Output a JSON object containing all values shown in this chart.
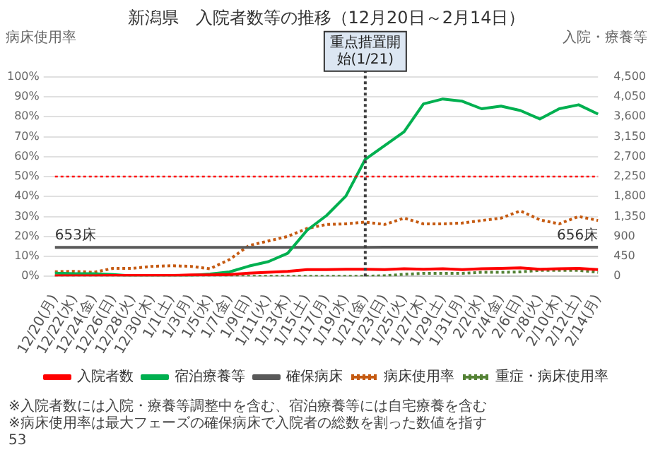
{
  "chart_data": {
    "type": "line",
    "title": "新潟県　入院者数等の推移（12月20日～2月14日）",
    "ylabel": "病床使用率",
    "y2label": "入院・療養等",
    "categories": [
      "12/20(月)",
      "12/22(水)",
      "12/24(金)",
      "12/26(日)",
      "12/28(火)",
      "12/30(木)",
      "1/1(土)",
      "1/3(月)",
      "1/5(水)",
      "1/7(金)",
      "1/9(日)",
      "1/11(火)",
      "1/13(木)",
      "1/15(土)",
      "1/17(月)",
      "1/19(水)",
      "1/21(金)",
      "1/23(日)",
      "1/25(火)",
      "1/27(木)",
      "1/29(土)",
      "1/31(月)",
      "2/2(水)",
      "2/4(金)",
      "2/6(日)",
      "2/8(火)",
      "2/10(木)",
      "2/12(土)",
      "2/14(月)"
    ],
    "series": [
      {
        "name": "入院者数",
        "color": "#ff0000",
        "axis": "y2",
        "line_style": "solid",
        "values": [
          10,
          10,
          10,
          20,
          20,
          20,
          20,
          30,
          30,
          40,
          70,
          90,
          110,
          150,
          150,
          160,
          160,
          150,
          170,
          160,
          170,
          150,
          170,
          180,
          190,
          160,
          170,
          180,
          150
        ]
      },
      {
        "name": "宿泊療養等",
        "color": "#00b050",
        "axis": "y2",
        "line_style": "solid",
        "values": [
          70,
          60,
          60,
          40,
          10,
          10,
          20,
          20,
          50,
          100,
          230,
          330,
          520,
          1040,
          1370,
          1810,
          2640,
          2950,
          3260,
          3890,
          4000,
          3950,
          3780,
          3840,
          3740,
          3550,
          3780,
          3870,
          3660
        ]
      },
      {
        "name": "確保病床",
        "color": "#595959",
        "axis": "y2",
        "line_style": "solid",
        "values": [
          653,
          653,
          653,
          653,
          653,
          653,
          653,
          653,
          653,
          653,
          653,
          653,
          653,
          653,
          653,
          653,
          653,
          656,
          656,
          656,
          656,
          656,
          656,
          656,
          656,
          656,
          656,
          656,
          656
        ],
        "value_labels": [
          "653床",
          null,
          null,
          null,
          null,
          null,
          null,
          null,
          null,
          null,
          null,
          null,
          null,
          null,
          null,
          null,
          null,
          null,
          null,
          null,
          null,
          null,
          null,
          null,
          null,
          null,
          null,
          null,
          "656床"
        ]
      },
      {
        "name": "病床使用率",
        "color": "#c55a11",
        "axis": "y",
        "line_style": "dotted",
        "values": [
          2.3,
          2.5,
          2,
          4,
          4,
          5,
          5.3,
          5,
          3.8,
          8.4,
          15.4,
          17.7,
          20,
          24,
          26,
          26.3,
          27.2,
          26,
          29.2,
          26.3,
          26.3,
          26.7,
          28,
          29.2,
          32.8,
          28.3,
          26.3,
          30,
          28
        ]
      },
      {
        "name": "重症・病床使用率",
        "color": "#548235",
        "axis": "y",
        "line_style": "dotted",
        "values": [
          0,
          0,
          0,
          0,
          0,
          0,
          0,
          0,
          0,
          0,
          0,
          0,
          0,
          0,
          0,
          0,
          0,
          0.3,
          1,
          1.5,
          1.5,
          1.5,
          2,
          2,
          2.2,
          3,
          3,
          3,
          2
        ]
      }
    ],
    "ylim": [
      0,
      100
    ],
    "yticks": [
      {
        "value": 0,
        "label": "0%"
      },
      {
        "value": 10,
        "label": "10%"
      },
      {
        "value": 20,
        "label": "20%"
      },
      {
        "value": 30,
        "label": "30%"
      },
      {
        "value": 40,
        "label": "40%"
      },
      {
        "value": 50,
        "label": "50%"
      },
      {
        "value": 60,
        "label": "60%"
      },
      {
        "value": 70,
        "label": "70%"
      },
      {
        "value": 80,
        "label": "80%"
      },
      {
        "value": 90,
        "label": "90%"
      },
      {
        "value": 100,
        "label": "100%"
      }
    ],
    "y2lim": [
      0,
      4500
    ],
    "y2ticks": [
      0,
      450,
      900,
      {
        "value": 1350,
        "label": "1,350"
      },
      {
        "value": 1800,
        "label": "1,800"
      },
      {
        "value": 2250,
        "label": "2,250"
      },
      {
        "value": 2700,
        "label": "2,700"
      },
      {
        "value": 3150,
        "label": "3,150"
      },
      {
        "value": 3600,
        "label": "3,600"
      },
      {
        "value": 4050,
        "label": "4,050"
      },
      {
        "value": 4500,
        "label": "4,500"
      }
    ],
    "ref_lines": [
      {
        "axis": "y",
        "value": 50,
        "color": "#ff0000",
        "line_style": "dotted"
      },
      {
        "axis": "x",
        "value": "1/21(金)",
        "label": "重点措置開始(1/21)",
        "color": "#404040",
        "line_style": "dotted"
      }
    ],
    "annotations": [
      "※入院者数には入院・療養等調整中を含む、宿泊療養等には自宅療養を含む",
      "※病床使用率は最大フェーズの確保病床で入院者の総数を割った数値を指す",
      "53"
    ],
    "grid": "y",
    "legend": "bottom",
    "marker": "none"
  }
}
